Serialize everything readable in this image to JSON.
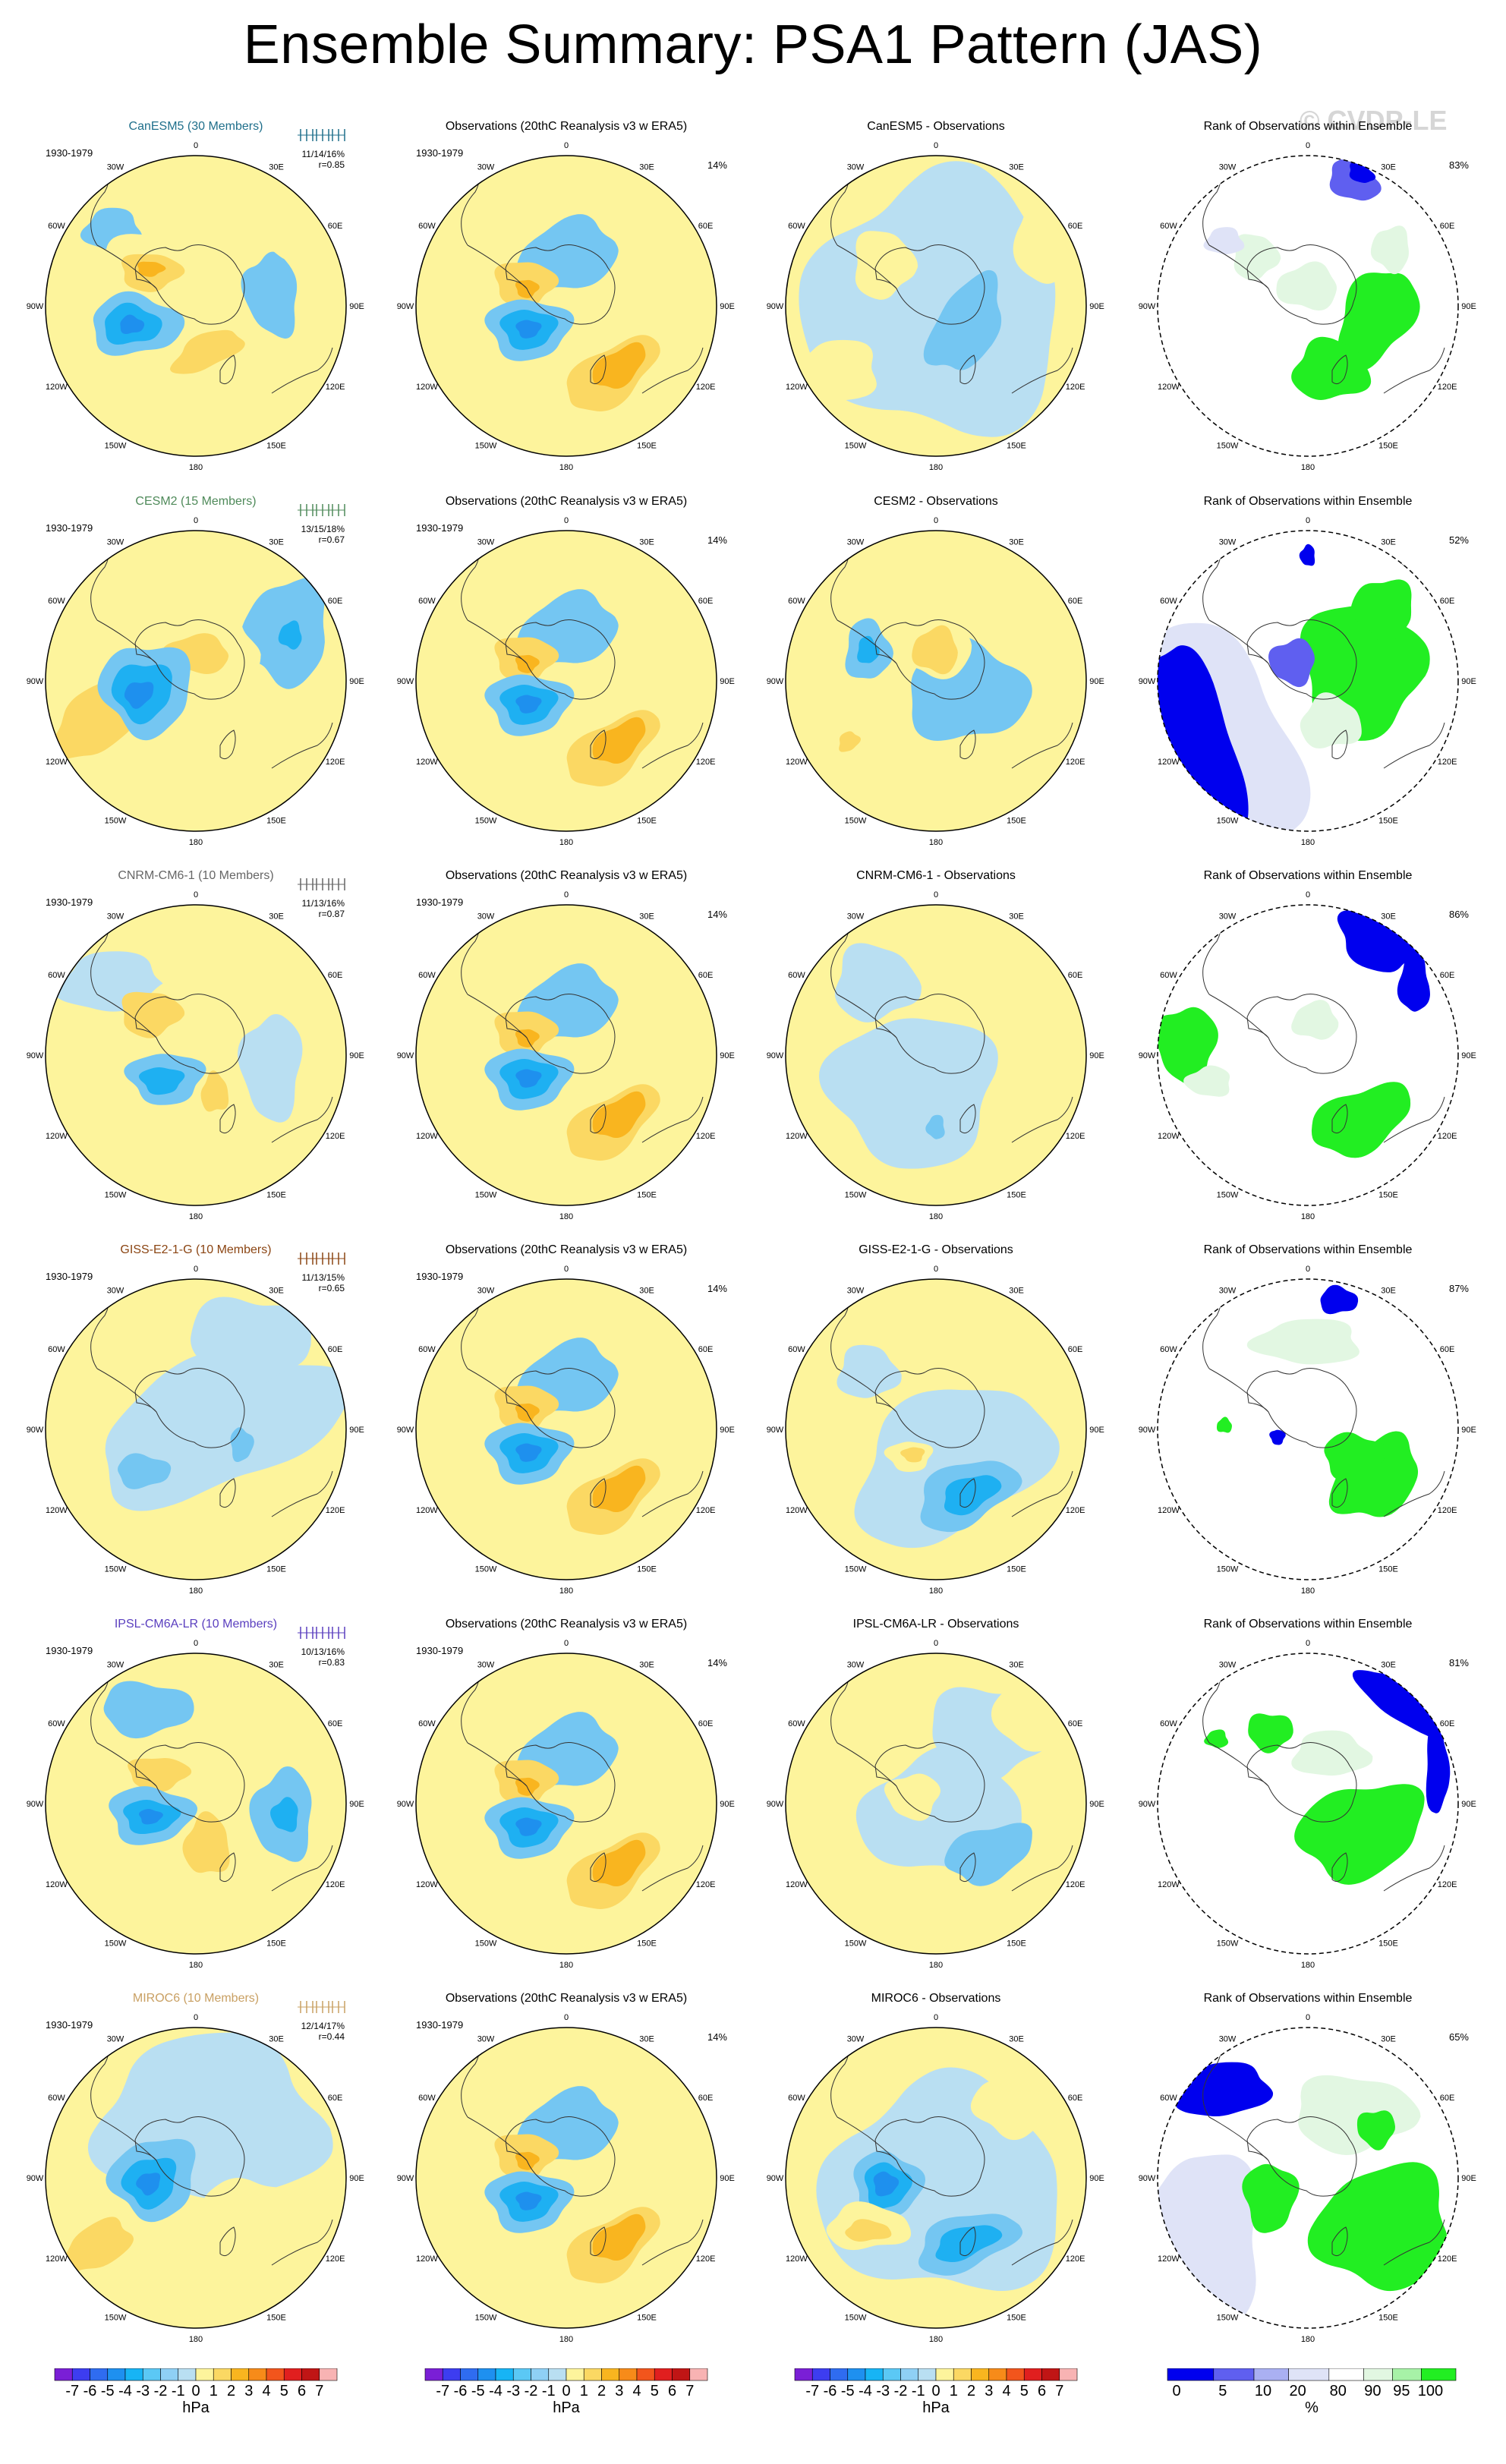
{
  "title": "Ensemble Summary: PSA1 Pattern (JAS)",
  "watermark": "© CVDP-LE",
  "column_titles": {
    "observations": "Observations (20thC Reanalysis v3 w ERA5)",
    "difference_suffix": " - Observations",
    "rank": "Rank of Observations within Ensemble"
  },
  "period": "1930-1979",
  "obs_percent": "14%",
  "longitude_labels": [
    "0",
    "30E",
    "60E",
    "90E",
    "120E",
    "150E",
    "180",
    "150W",
    "120W",
    "90W",
    "60W",
    "30W"
  ],
  "models": [
    {
      "label": "CanESM5 (30 Members)",
      "name": "CanESM5",
      "color": "#1f6f8b",
      "stats": "11/14/16%",
      "r": "r=0.85",
      "rank_percent": "83%"
    },
    {
      "label": "CESM2 (15 Members)",
      "name": "CESM2",
      "color": "#4f8a5a",
      "stats": "13/15/18%",
      "r": "r=0.67",
      "rank_percent": "52%"
    },
    {
      "label": "CNRM-CM6-1 (10 Members)",
      "name": "CNRM-CM6-1",
      "color": "#666666",
      "stats": "11/13/16%",
      "r": "r=0.87",
      "rank_percent": "86%"
    },
    {
      "label": "GISS-E2-1-G (10 Members)",
      "name": "GISS-E2-1-G",
      "color": "#8b4513",
      "stats": "11/13/15%",
      "r": "r=0.65",
      "rank_percent": "87%"
    },
    {
      "label": "IPSL-CM6A-LR (10 Members)",
      "name": "IPSL-CM6A-LR",
      "color": "#5a3fbf",
      "stats": "10/13/16%",
      "r": "r=0.83",
      "rank_percent": "81%"
    },
    {
      "label": "MIROC6 (10 Members)",
      "name": "MIROC6",
      "color": "#c9a063",
      "stats": "12/14/17%",
      "r": "r=0.44",
      "rank_percent": "65%"
    }
  ],
  "colorbar_hpa": {
    "ticks": [
      "-7",
      "-6",
      "-5",
      "-4",
      "-3",
      "-2",
      "-1",
      "0",
      "1",
      "2",
      "3",
      "4",
      "5",
      "6",
      "7"
    ],
    "unit": "hPa",
    "colors": [
      "#7a1fd6",
      "#3d3df0",
      "#2f6cf0",
      "#1e90f0",
      "#17b4f5",
      "#5bc8f5",
      "#8fd0f5",
      "#b9dff2",
      "#fdf49c",
      "#fbd863",
      "#f9b51f",
      "#f78b19",
      "#f2551c",
      "#e11f1f",
      "#c01515",
      "#f8b3b3"
    ]
  },
  "colorbar_rank": {
    "ticks": [
      "0",
      "5",
      "10",
      "20",
      "80",
      "90",
      "95",
      "100"
    ],
    "unit": "%",
    "colors": [
      "#0000ee",
      "#5f5ff0",
      "#aab0f2",
      "#dfe3f7",
      "#ffffff",
      "#e2f7e2",
      "#a7f2a7",
      "#22ee22"
    ]
  },
  "chart_data": {
    "type": "heatmap",
    "projection": "south polar stereographic",
    "variable": "sea level pressure anomaly (PSA1 pattern)",
    "season": "JAS",
    "period": "1930-1979",
    "rows": [
      "CanESM5",
      "CESM2",
      "CNRM-CM6-1",
      "GISS-E2-1-G",
      "IPSL-CM6A-LR",
      "MIROC6"
    ],
    "columns": [
      "ensemble mean pattern",
      "observations",
      "model minus observations",
      "rank of observations"
    ],
    "contour_levels_hPa": [
      -7,
      -6,
      -5,
      -4,
      -3,
      -2,
      -1,
      0,
      1,
      2,
      3,
      4,
      5,
      6,
      7
    ],
    "rank_levels_percent": [
      0,
      5,
      10,
      20,
      80,
      90,
      95,
      100
    ],
    "pattern_correlation": [
      0.85,
      0.67,
      0.87,
      0.65,
      0.83,
      0.44
    ],
    "variance_explained": [
      "11/14/16%",
      "13/15/18%",
      "11/13/16%",
      "11/13/15%",
      "10/13/16%",
      "12/14/17%"
    ],
    "observed_variance_explained": "14%",
    "rank_summary_percent": [
      83,
      52,
      86,
      87,
      81,
      65
    ]
  }
}
